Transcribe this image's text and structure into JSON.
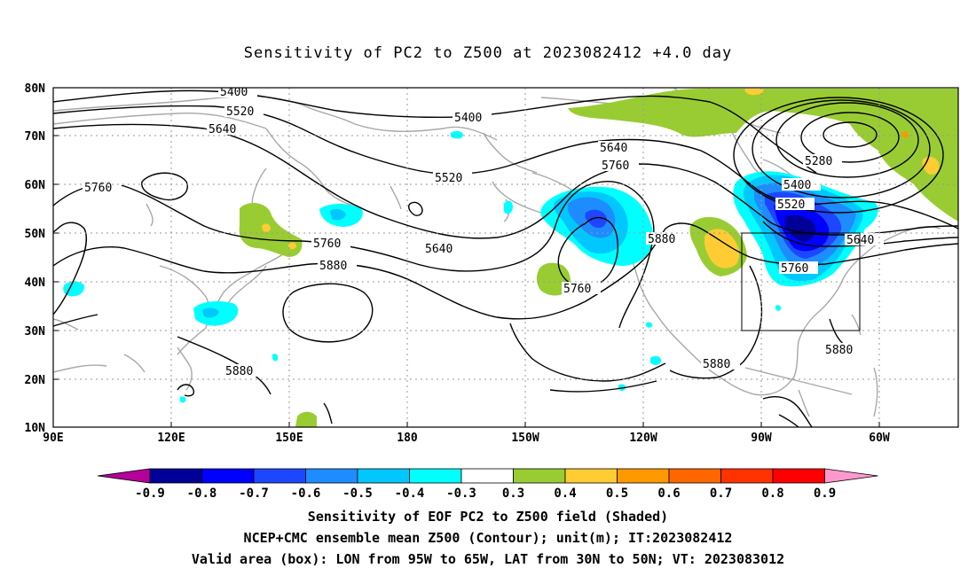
{
  "title": "Sensitivity of PC2 to Z500 at 2023082412 +4.0 day",
  "map": {
    "lat_labels": [
      "80N",
      "70N",
      "60N",
      "50N",
      "40N",
      "30N",
      "20N",
      "10N"
    ],
    "lon_labels": [
      "90E",
      "120E",
      "150E",
      "180",
      "150W",
      "120W",
      "90W",
      "60W"
    ],
    "contour_labels": [
      "5400",
      "5520",
      "5640",
      "5760",
      "5880",
      "5400",
      "5520",
      "5640",
      "5760",
      "5640",
      "5760",
      "5880",
      "5280",
      "5400",
      "5520",
      "5640",
      "5760",
      "5880",
      "5880",
      "5880"
    ],
    "box": {
      "lon_from": "95W",
      "lon_to": "65W",
      "lat_from": "30N",
      "lat_to": "50N"
    }
  },
  "colorbar": {
    "labels": [
      "-0.9",
      "-0.8",
      "-0.7",
      "-0.6",
      "-0.5",
      "-0.4",
      "-0.3",
      "0.3",
      "0.4",
      "0.5",
      "0.6",
      "0.7",
      "0.8",
      "0.9"
    ],
    "colors": [
      "#b5009c",
      "#000096",
      "#0000ff",
      "#1e46ff",
      "#1e8cff",
      "#00c8ff",
      "#00ffff",
      "#ffffff",
      "#99cc33",
      "#ffcc33",
      "#ff9900",
      "#ff6600",
      "#ff3300",
      "#ff0000",
      "#ff99cc"
    ]
  },
  "captions": {
    "line1": "Sensitivity of EOF PC2 to Z500 field (Shaded)",
    "line2": "NCEP+CMC ensemble mean Z500 (Contour); unit(m); IT:2023082412",
    "line3": "Valid area (box): LON from 95W to 65W, LAT from 30N to 50N; VT: 2023083012"
  }
}
